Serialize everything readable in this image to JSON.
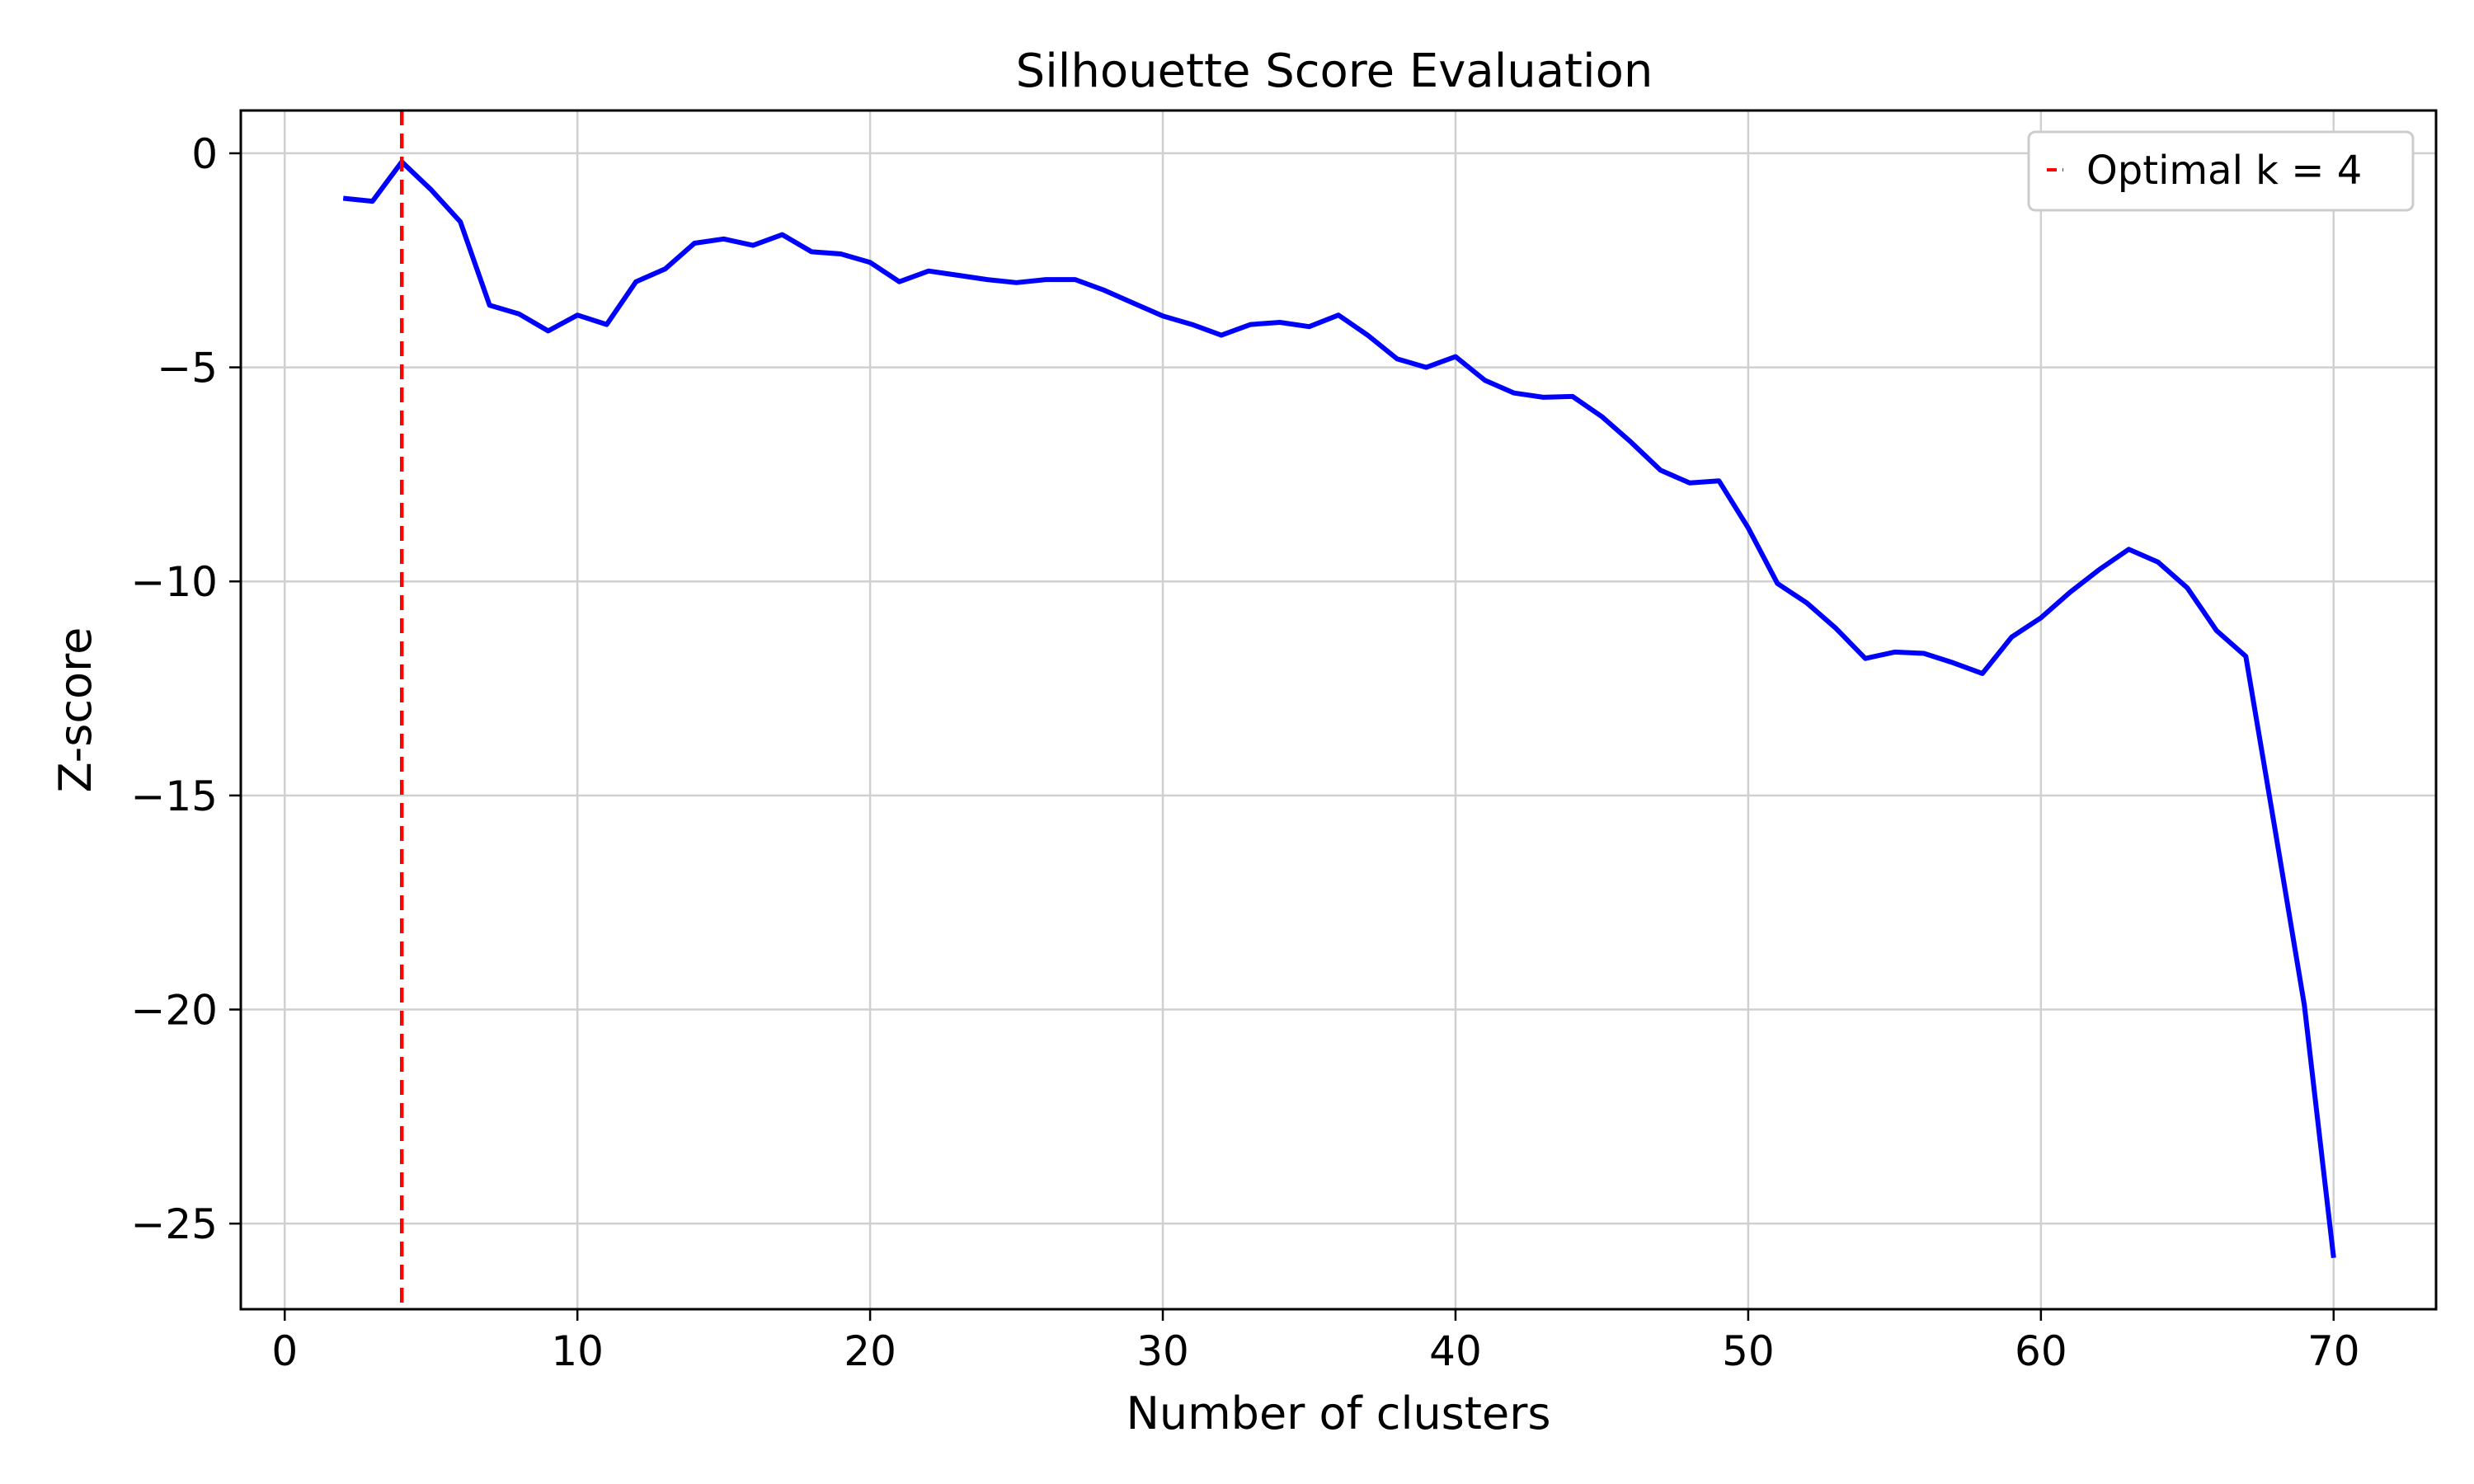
{
  "chart_data": {
    "type": "line",
    "title": "Silhouette Score Evaluation",
    "xlabel": "Number of clusters",
    "ylabel": "Z-score",
    "xlim": [
      -1.5,
      73.5
    ],
    "ylim": [
      -27,
      1
    ],
    "xticks": [
      0,
      10,
      20,
      30,
      40,
      50,
      60,
      70
    ],
    "xtick_labels": [
      "0",
      "10",
      "20",
      "30",
      "40",
      "50",
      "60",
      "70"
    ],
    "yticks": [
      0,
      -5,
      -10,
      -15,
      -20,
      -25
    ],
    "ytick_labels": [
      "0",
      "−5",
      "−10",
      "−15",
      "−20",
      "−25"
    ],
    "grid": true,
    "legend_position": "top-right",
    "legend_label": "Optimal k = 4",
    "series": [
      {
        "color": "#0000ff",
        "x": [
          2,
          3,
          4,
          5,
          6,
          7,
          8,
          9,
          10,
          11,
          12,
          13,
          14,
          15,
          16,
          17,
          18,
          19,
          20,
          21,
          22,
          23,
          24,
          25,
          26,
          27,
          28,
          29,
          30,
          31,
          32,
          33,
          34,
          35,
          36,
          37,
          38,
          39,
          40,
          41,
          42,
          43,
          44,
          45,
          46,
          47,
          48,
          49,
          50,
          51,
          52,
          53,
          54,
          55,
          56,
          57,
          58,
          59,
          60,
          61,
          62,
          63,
          64,
          65,
          66,
          67,
          68,
          69,
          70
        ],
        "y": [
          -1.05,
          -1.12,
          -0.2,
          -0.85,
          -1.6,
          -3.55,
          -3.75,
          -4.15,
          -3.78,
          -4.0,
          -3.0,
          -2.7,
          -2.1,
          -2.0,
          -2.15,
          -1.9,
          -2.3,
          -2.35,
          -2.55,
          -3.0,
          -2.75,
          -2.85,
          -2.95,
          -3.02,
          -2.95,
          -2.95,
          -3.2,
          -3.5,
          -3.8,
          -4.0,
          -4.25,
          -4.0,
          -3.95,
          -4.05,
          -3.78,
          -4.25,
          -4.8,
          -5.0,
          -4.75,
          -5.3,
          -5.6,
          -5.7,
          -5.68,
          -6.15,
          -6.75,
          -7.4,
          -7.7,
          -7.65,
          -8.75,
          -10.05,
          -10.5,
          -11.1,
          -11.8,
          -11.65,
          -11.68,
          -11.9,
          -12.15,
          -11.3,
          -10.85,
          -10.25,
          -9.72,
          -9.25,
          -9.55,
          -10.15,
          -11.15,
          -11.75,
          -15.8,
          -19.9,
          -25.8
        ]
      }
    ],
    "reference_lines": [
      {
        "type": "vertical",
        "x": 4,
        "color": "#ff0000",
        "style": "dashed",
        "label": "Optimal k = 4"
      }
    ]
  }
}
